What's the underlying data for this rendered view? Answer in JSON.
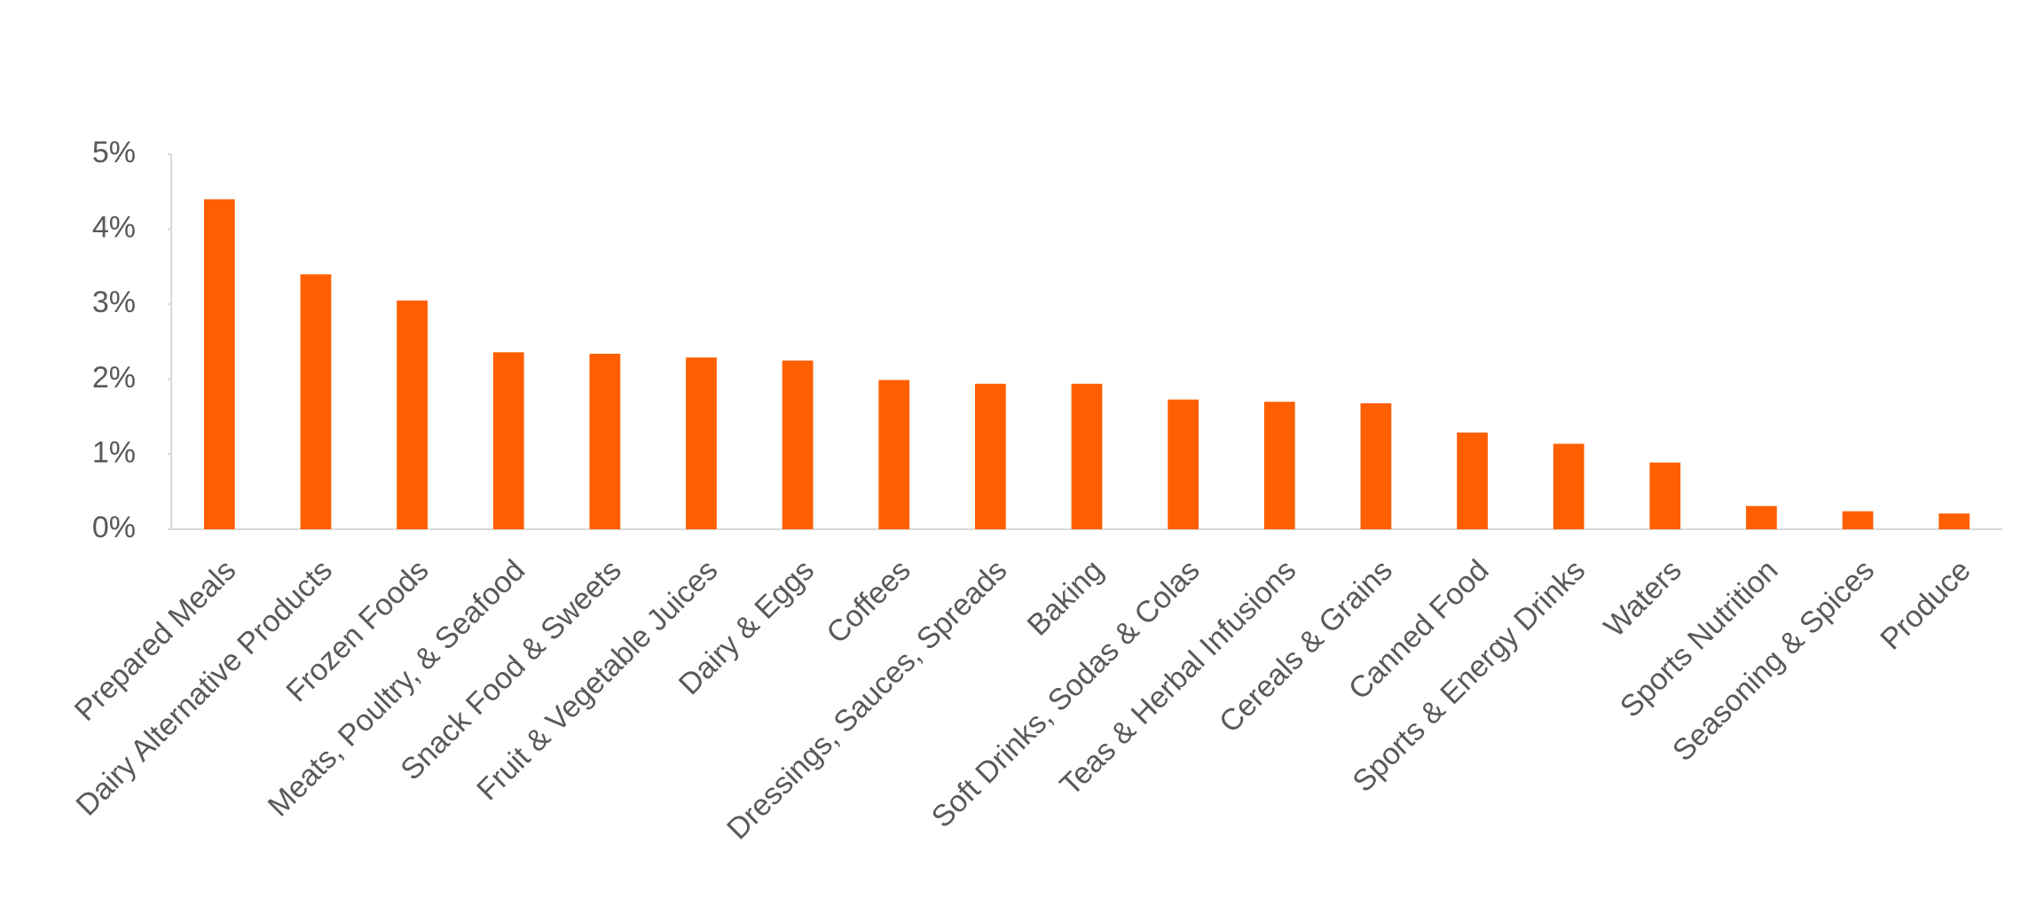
{
  "chart_data": {
    "type": "bar",
    "categories": [
      "Prepared Meals",
      "Dairy Alternative Products",
      "Frozen Foods",
      "Meats, Poultry, & Seafood",
      "Snack Food & Sweets",
      "Fruit & Vegetable Juices",
      "Dairy & Eggs",
      "Coffees",
      "Dressings, Sauces, Spreads",
      "Baking",
      "Soft Drinks, Sodas & Colas",
      "Teas & Herbal Infusions",
      "Cereals & Grains",
      "Canned Food",
      "Sports & Energy Drinks",
      "Waters",
      "Sports Nutrition",
      "Seasoning & Spices",
      "Produce"
    ],
    "values": [
      4.4,
      3.4,
      3.05,
      2.36,
      2.34,
      2.29,
      2.25,
      1.99,
      1.94,
      1.94,
      1.73,
      1.7,
      1.68,
      1.29,
      1.14,
      0.89,
      0.31,
      0.24,
      0.21
    ],
    "color": "#ff5f00",
    "ylim": [
      0,
      5
    ],
    "yticks": [
      {
        "value": 0,
        "label": "0%"
      },
      {
        "value": 1,
        "label": "1%"
      },
      {
        "value": 2,
        "label": "2%"
      },
      {
        "value": 3,
        "label": "3%"
      },
      {
        "value": 4,
        "label": "4%"
      },
      {
        "value": 5,
        "label": "5%"
      }
    ],
    "grid": false
  }
}
